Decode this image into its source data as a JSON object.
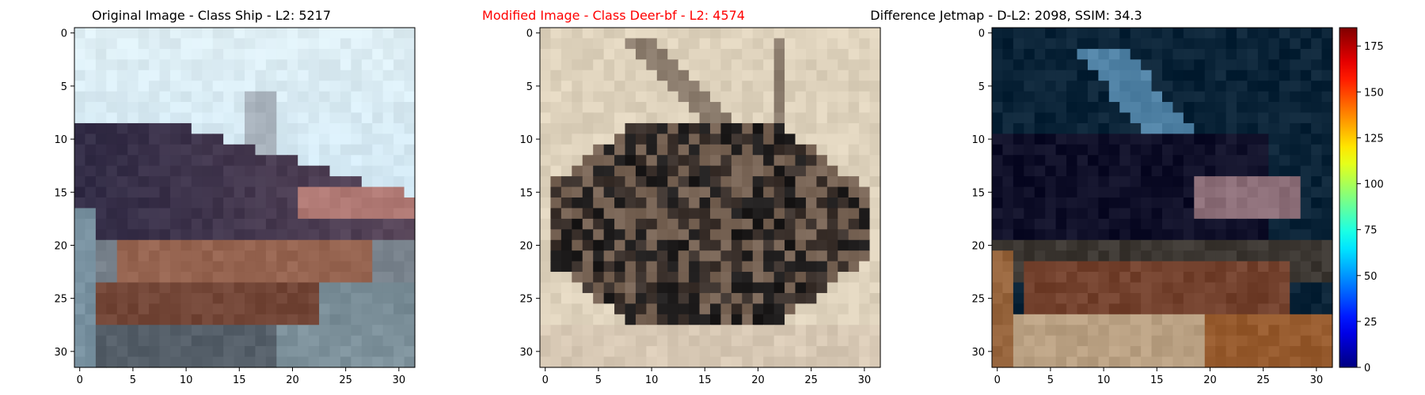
{
  "chart_data": [
    {
      "type": "heatmap",
      "title": "Original Image - Class Ship - L2: 5217",
      "title_color": "#000000",
      "xlabel": "",
      "ylabel": "",
      "xlim": [
        -0.5,
        31.5
      ],
      "ylim": [
        31.5,
        -0.5
      ],
      "x_ticks": [
        0,
        5,
        10,
        15,
        20,
        25,
        30
      ],
      "y_ticks": [
        0,
        5,
        10,
        15,
        20,
        25,
        30
      ],
      "grid": false,
      "colormap": "rgb image (sky / dark hull / rust stripe)"
    },
    {
      "type": "heatmap",
      "title": "Modified Image - Class Deer-bf - L2: 4574",
      "title_color": "#ff0000",
      "xlabel": "",
      "ylabel": "",
      "xlim": [
        -0.5,
        31.5
      ],
      "ylim": [
        31.5,
        -0.5
      ],
      "x_ticks": [
        0,
        5,
        10,
        15,
        20,
        25,
        30
      ],
      "y_ticks": [
        0,
        5,
        10,
        15,
        20,
        25,
        30
      ],
      "grid": false,
      "colormap": "rgb image (beige background / dark shapes)"
    },
    {
      "type": "heatmap",
      "title": "Difference Jetmap - D-L2: 2098, SSIM: 34.3",
      "title_color": "#000000",
      "xlabel": "",
      "ylabel": "",
      "xlim": [
        -0.5,
        31.5
      ],
      "ylim": [
        31.5,
        -0.5
      ],
      "x_ticks": [
        0,
        5,
        10,
        15,
        20,
        25,
        30
      ],
      "y_ticks": [
        0,
        5,
        10,
        15,
        20,
        25,
        30
      ],
      "grid": false,
      "colormap": "jet",
      "colorbar": {
        "min": 0,
        "max": 185,
        "ticks": [
          0,
          25,
          50,
          75,
          100,
          125,
          150,
          175
        ]
      }
    }
  ]
}
